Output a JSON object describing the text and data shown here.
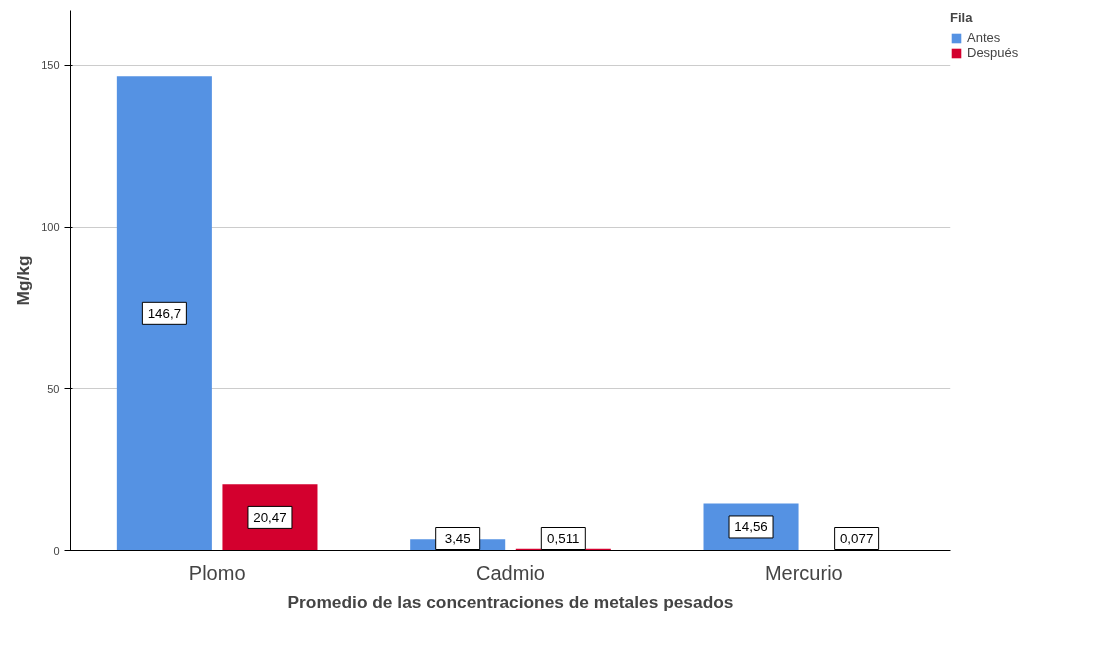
{
  "chart_data": {
    "type": "bar",
    "xlabel": "Promedio de las concentraciones de metales pesados",
    "ylabel": "Mg/kg",
    "legend_title": "Fila",
    "categories": [
      "Plomo",
      "Cadmio",
      "Mercurio"
    ],
    "series": [
      {
        "name": "Antes",
        "color": "#5592e3",
        "values": [
          146.7,
          3.45,
          14.56
        ],
        "value_labels": [
          "146,7",
          "3,45",
          "14,56"
        ]
      },
      {
        "name": "Después",
        "color": "#d3002e",
        "values": [
          20.47,
          0.511,
          0.077
        ],
        "value_labels": [
          "20,47",
          "0,511",
          "0,077"
        ]
      }
    ],
    "ylim": [
      0,
      167
    ],
    "yticks": [
      0,
      50,
      100,
      150
    ],
    "grid": "y",
    "legend": "top right"
  }
}
